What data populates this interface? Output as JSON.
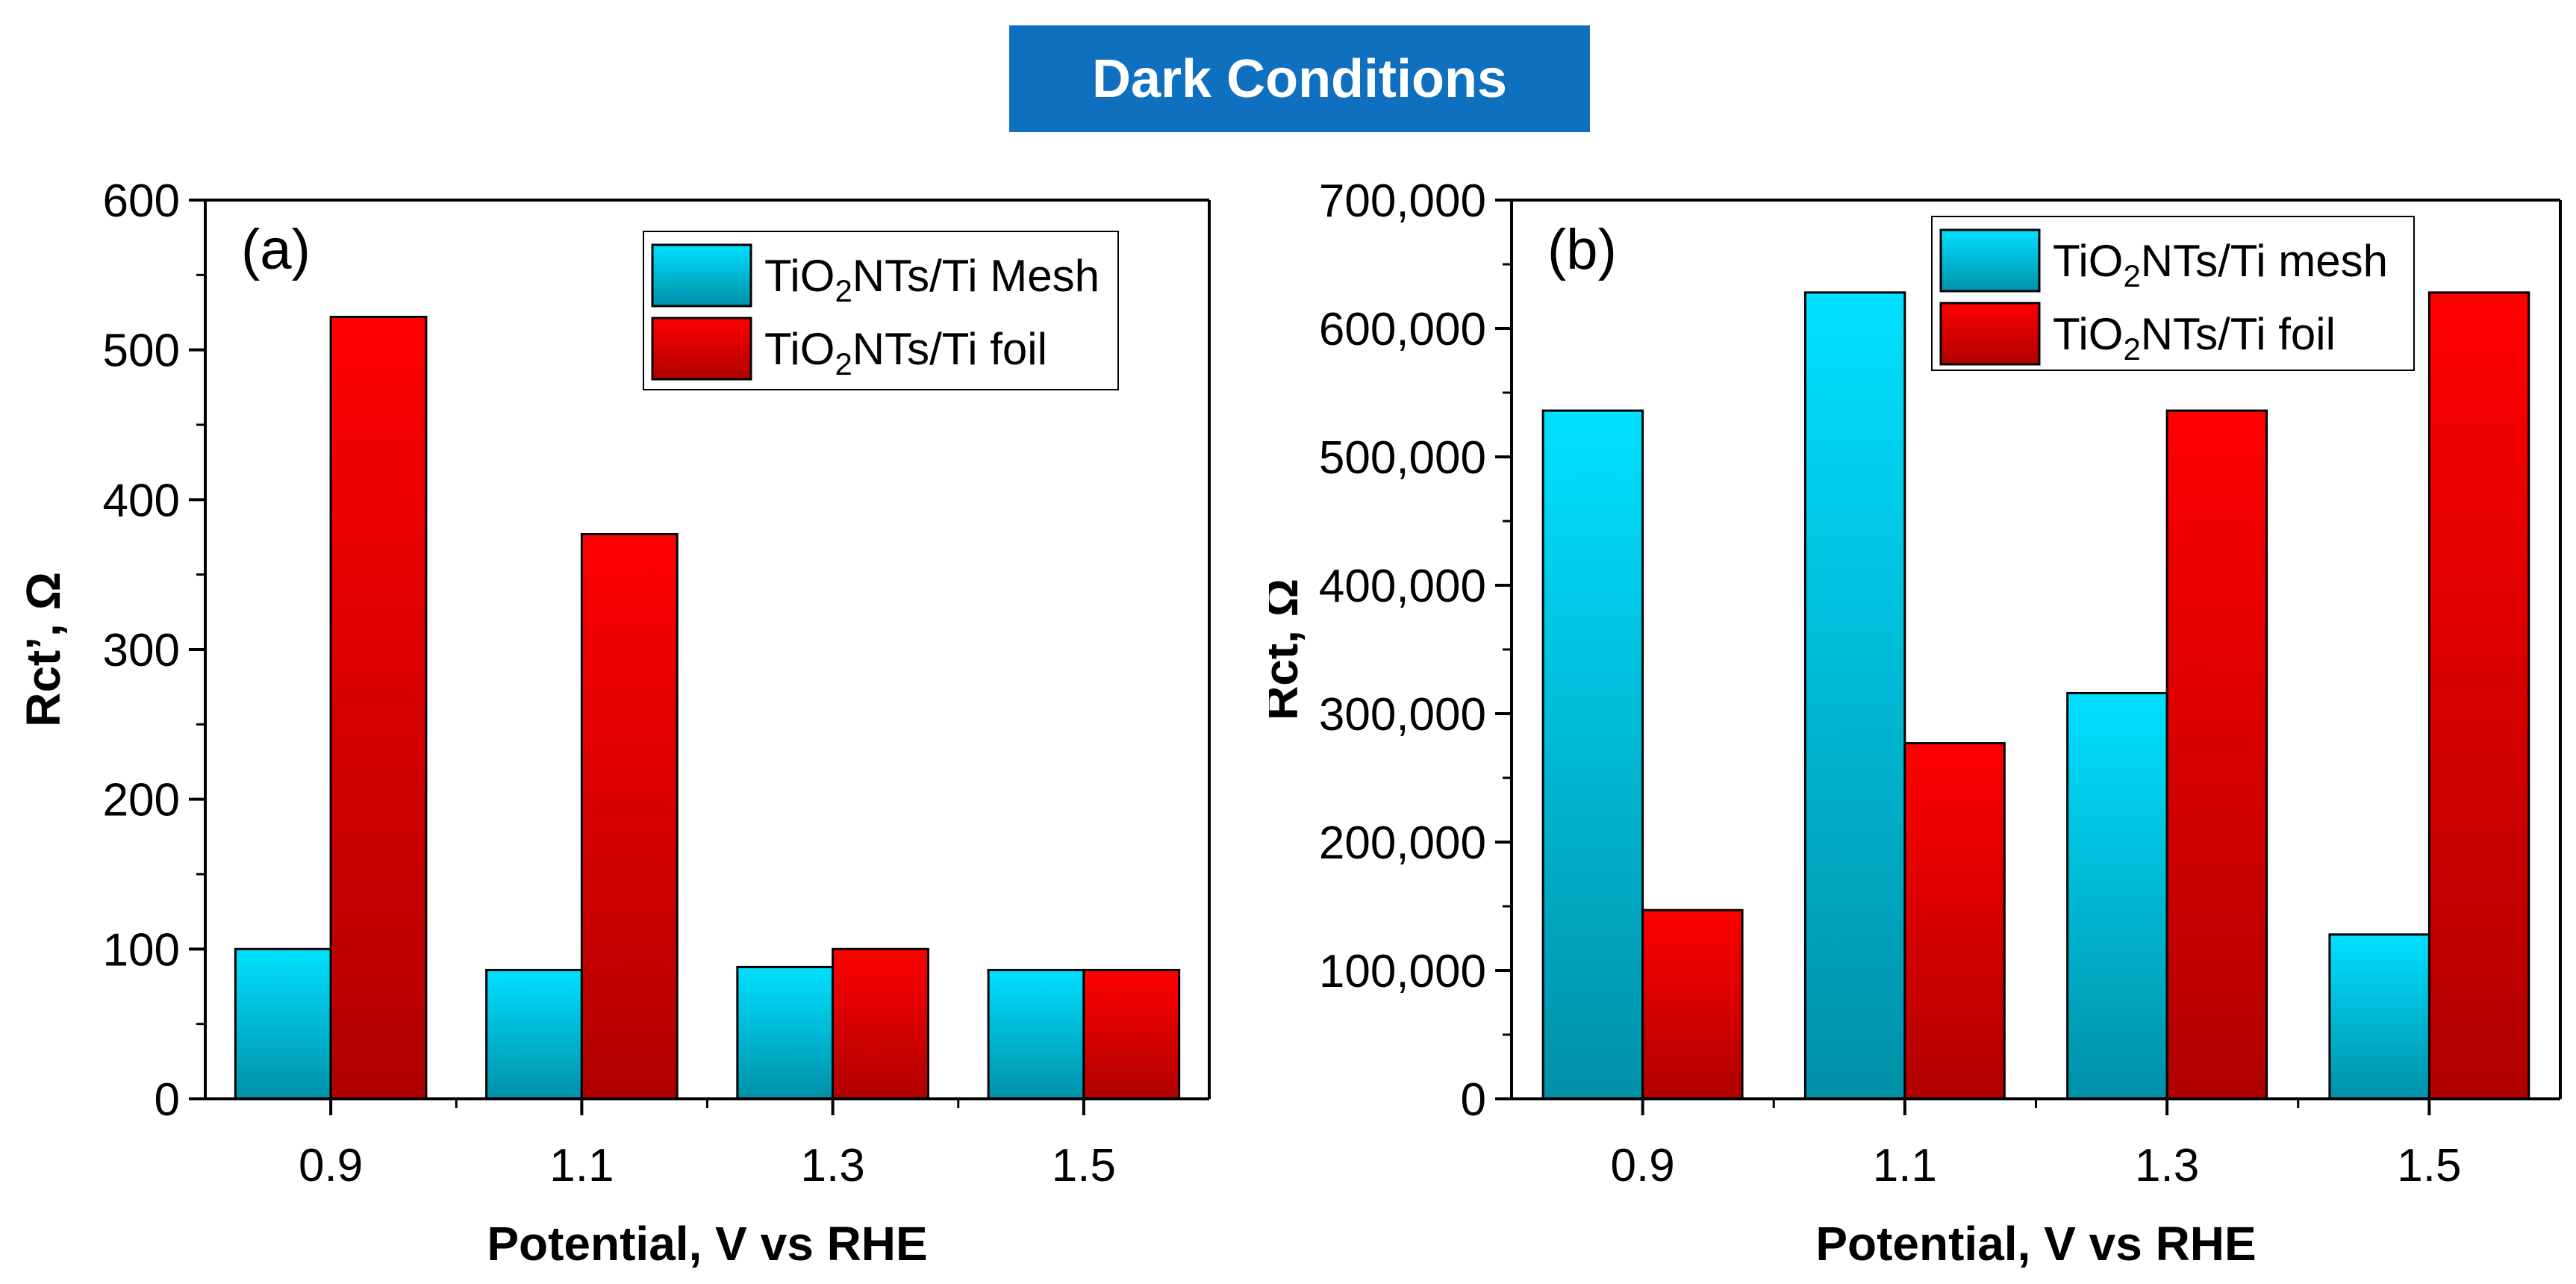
{
  "header": {
    "title": "Dark Conditions"
  },
  "colors": {
    "title_bg": "#1070c0",
    "mesh_top": "#00e0ff",
    "mesh_bottom": "#0090a8",
    "foil_top": "#ff0000",
    "foil_bottom": "#b00000"
  },
  "chart_data": [
    {
      "type": "bar",
      "panel_label": "(a)",
      "categories": [
        "0.9",
        "1.1",
        "1.3",
        "1.5"
      ],
      "series": [
        {
          "name_main": "TiO",
          "name_sub": "2",
          "name_rest": "NTs/Ti Mesh",
          "values": [
            100,
            86,
            88,
            86
          ]
        },
        {
          "name_main": "TiO",
          "name_sub": "2",
          "name_rest": "NTs/Ti foil",
          "values": [
            522,
            377,
            100,
            86
          ]
        }
      ],
      "xlabel": "Potential, V vs RHE",
      "ylabel": "Rct’, Ω",
      "ylim": [
        0,
        600
      ],
      "yticks": [
        0,
        100,
        200,
        300,
        400,
        500,
        600
      ],
      "ytick_labels": [
        "0",
        "100",
        "200",
        "300",
        "400",
        "500",
        "600"
      ],
      "legend_position": "top-right",
      "grid": false
    },
    {
      "type": "bar",
      "panel_label": "(b)",
      "categories": [
        "0.9",
        "1.1",
        "1.3",
        "1.5"
      ],
      "series": [
        {
          "name_main": "TiO",
          "name_sub": "2",
          "name_rest": "NTs/Ti mesh",
          "values": [
            536000,
            628000,
            316000,
            128000
          ]
        },
        {
          "name_main": "TiO",
          "name_sub": "2",
          "name_rest": "NTs/Ti foil",
          "values": [
            147000,
            277000,
            536000,
            628000
          ]
        }
      ],
      "xlabel": "Potential, V vs RHE",
      "ylabel": "Rct, Ω",
      "ylim": [
        0,
        700000
      ],
      "yticks": [
        0,
        100000,
        200000,
        300000,
        400000,
        500000,
        600000,
        700000
      ],
      "ytick_labels": [
        "0",
        "100,000",
        "200,000",
        "300,000",
        "400,000",
        "500,000",
        "600,000",
        "700,000"
      ],
      "legend_position": "top-right",
      "grid": false
    }
  ]
}
